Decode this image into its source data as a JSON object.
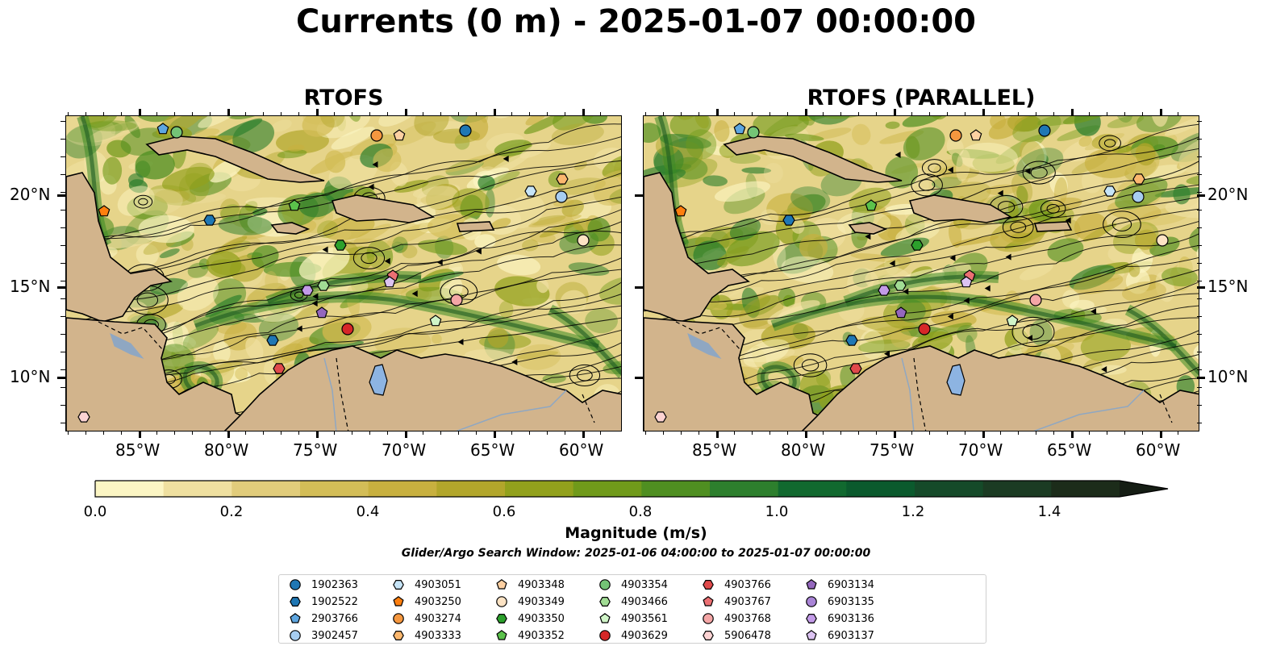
{
  "title": "Currents (0 m) - 2025-01-07 00:00:00",
  "panels": [
    {
      "title": "RTOFS"
    },
    {
      "title": "RTOFS (PARALLEL)"
    }
  ],
  "axes": {
    "lon_ticks": [
      "85°W",
      "80°W",
      "75°W",
      "70°W",
      "65°W",
      "60°W"
    ],
    "lat_ticks": [
      "20°N",
      "15°N",
      "10°N"
    ]
  },
  "colorbar": {
    "label": "Magnitude (m/s)",
    "ticks": [
      "0.0",
      "0.2",
      "0.4",
      "0.6",
      "0.8",
      "1.0",
      "1.2",
      "1.4"
    ],
    "range": [
      0,
      1.5
    ],
    "extend": "max",
    "colors": [
      "#fcf6c4",
      "#efe0a0",
      "#e1cc7b",
      "#d3bd57",
      "#c8b03f",
      "#b2a62b",
      "#92a11c",
      "#709a1a",
      "#4f8f21",
      "#2d7f2d",
      "#11692f",
      "#0b5a2d",
      "#154a29",
      "#1b3b23",
      "#1c2c1a"
    ]
  },
  "search_window": "Glider/Argo Search Window: 2025-01-06 04:00:00 to 2025-01-07 00:00:00",
  "legend": [
    {
      "id": "1902363",
      "marker": "circle",
      "color": "#1f77b4"
    },
    {
      "id": "1902522",
      "marker": "hexagon",
      "color": "#1f77b4"
    },
    {
      "id": "2903766",
      "marker": "pentagon",
      "color": "#5ea6e0"
    },
    {
      "id": "3902457",
      "marker": "circle",
      "color": "#a7cdf1"
    },
    {
      "id": "4903051",
      "marker": "hexagon",
      "color": "#c6e4f7"
    },
    {
      "id": "4903250",
      "marker": "pentagon",
      "color": "#ff7f0e"
    },
    {
      "id": "4903274",
      "marker": "circle",
      "color": "#f5973f"
    },
    {
      "id": "4903333",
      "marker": "hexagon",
      "color": "#fbb76e"
    },
    {
      "id": "4903348",
      "marker": "pentagon",
      "color": "#fdd0a2"
    },
    {
      "id": "4903349",
      "marker": "circle",
      "color": "#fde3c4"
    },
    {
      "id": "4903350",
      "marker": "hexagon",
      "color": "#2ca02c"
    },
    {
      "id": "4903352",
      "marker": "pentagon",
      "color": "#5bc24b"
    },
    {
      "id": "4903354",
      "marker": "circle",
      "color": "#74c476"
    },
    {
      "id": "4903466",
      "marker": "hexagon",
      "color": "#a1dc94"
    },
    {
      "id": "4903561",
      "marker": "pentagon",
      "color": "#d0f5c8"
    },
    {
      "id": "4903629",
      "marker": "circle",
      "color": "#d62728"
    },
    {
      "id": "4903766",
      "marker": "hexagon",
      "color": "#e04a4b"
    },
    {
      "id": "4903767",
      "marker": "pentagon",
      "color": "#ec7073"
    },
    {
      "id": "4903768",
      "marker": "circle",
      "color": "#f4a6a6"
    },
    {
      "id": "5906478",
      "marker": "hexagon",
      "color": "#fcd3d3"
    },
    {
      "id": "6903134",
      "marker": "pentagon",
      "color": "#9467bd"
    },
    {
      "id": "6903135",
      "marker": "circle",
      "color": "#a984d6"
    },
    {
      "id": "6903136",
      "marker": "hexagon",
      "color": "#c39be8"
    },
    {
      "id": "6903137",
      "marker": "pentagon",
      "color": "#dcc3f2"
    }
  ]
}
